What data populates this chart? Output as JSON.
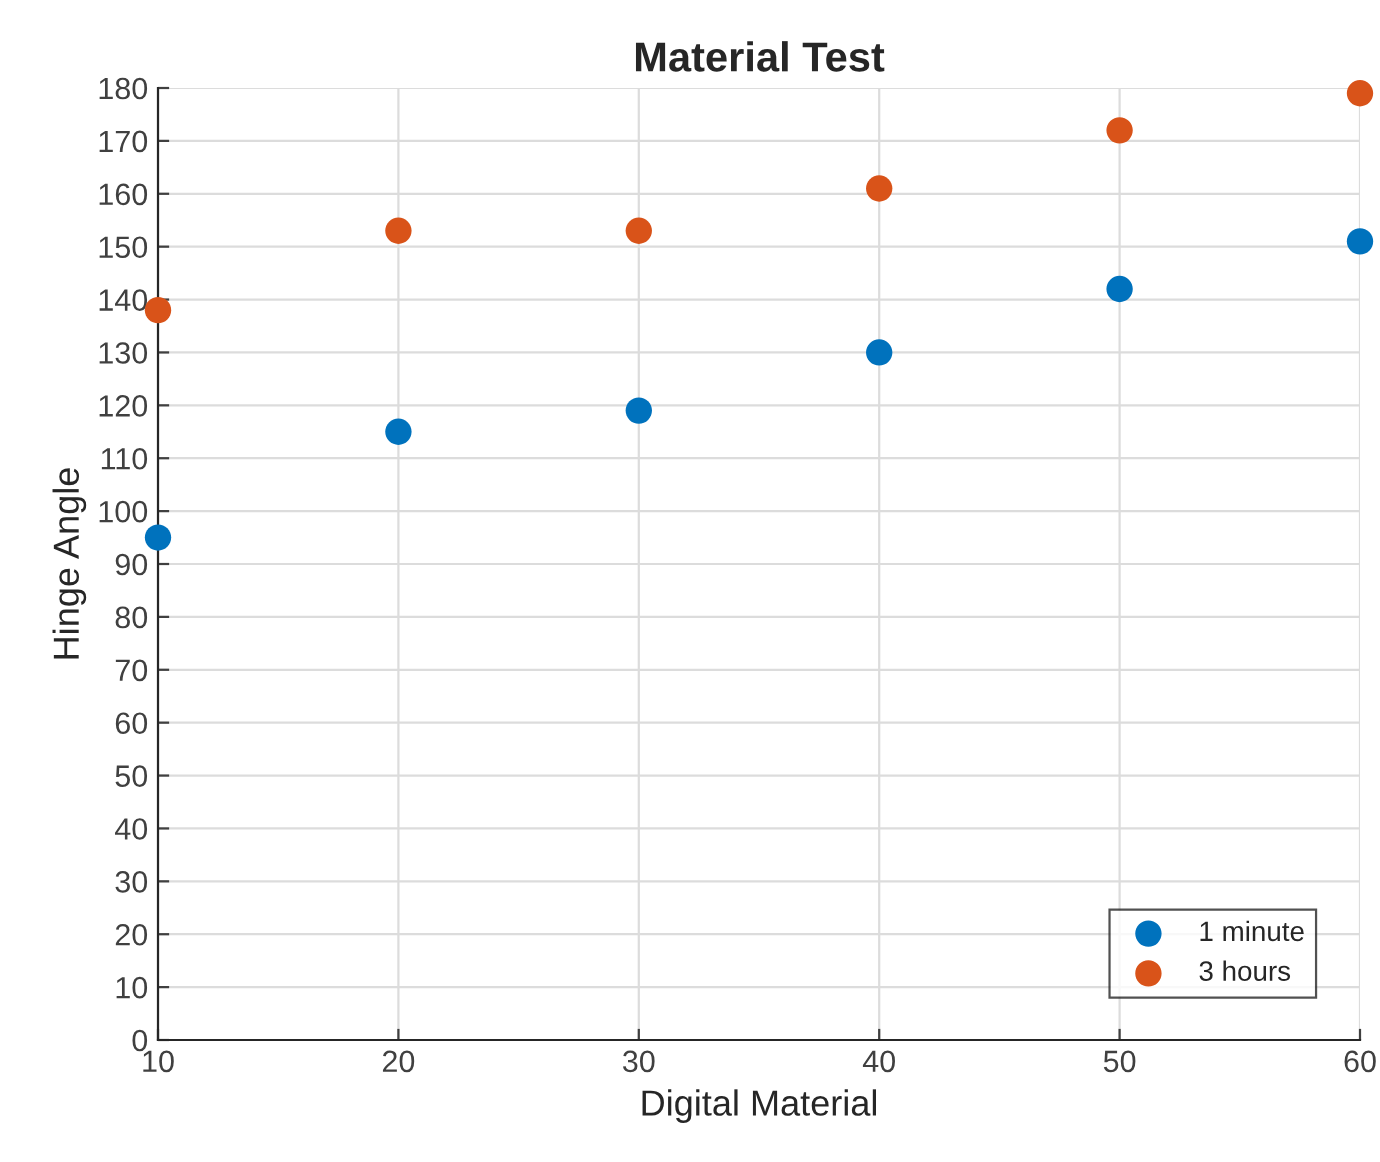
{
  "chart_data": {
    "type": "scatter",
    "title": "Material Test",
    "xlabel": "Digital Material",
    "ylabel": "Hinge Angle",
    "x": [
      10,
      20,
      30,
      40,
      50,
      60
    ],
    "series": [
      {
        "name": "1 minute",
        "color": "#0072bd",
        "values": [
          95,
          115,
          119,
          130,
          142,
          151
        ]
      },
      {
        "name": "3 hours",
        "color": "#d95319",
        "values": [
          138,
          153,
          153,
          161,
          172,
          179
        ]
      }
    ],
    "xlim": [
      10,
      60
    ],
    "xticks": [
      10,
      20,
      30,
      40,
      50,
      60
    ],
    "ylim": [
      0,
      180
    ],
    "yticks": [
      0,
      10,
      20,
      30,
      40,
      50,
      60,
      70,
      80,
      90,
      100,
      110,
      120,
      130,
      140,
      150,
      160,
      170,
      180
    ],
    "grid": true,
    "legend": "bottom right",
    "marker": "circle"
  }
}
